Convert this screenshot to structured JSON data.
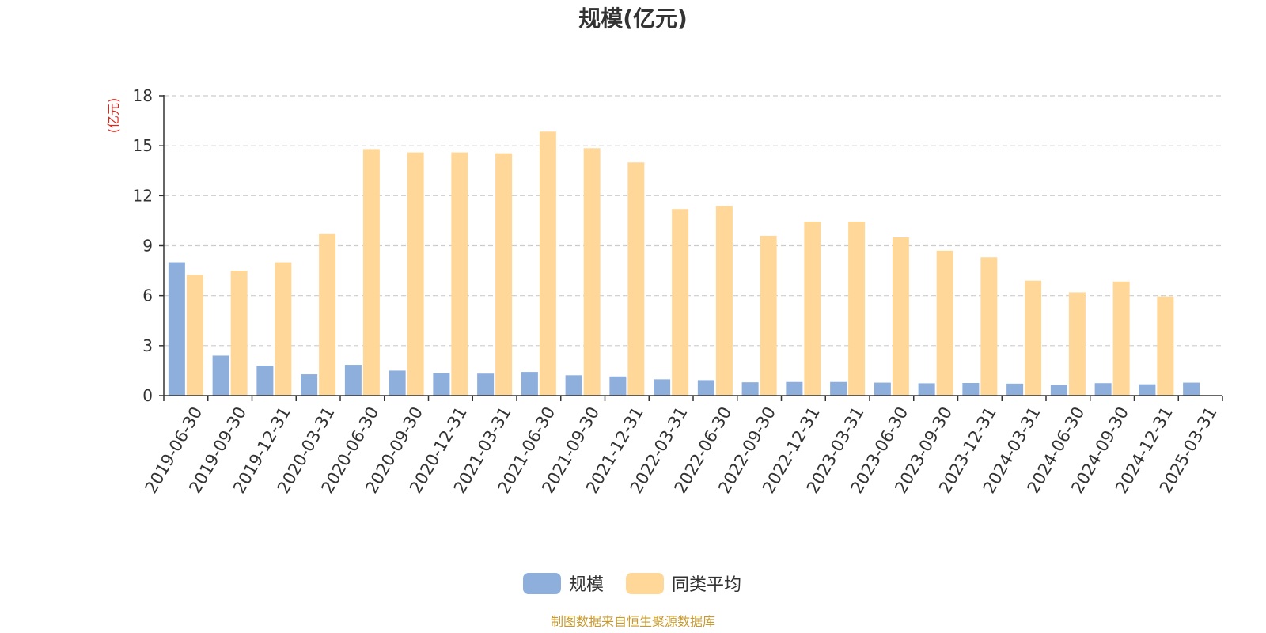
{
  "chart_data": {
    "type": "bar",
    "title": "规模(亿元)",
    "ylabel": "(亿元)",
    "ylim": [
      0,
      18
    ],
    "yticks": [
      0,
      3,
      6,
      9,
      12,
      15,
      18
    ],
    "grid": true,
    "legend_position": "bottom-center",
    "categories": [
      "2019-06-30",
      "2019-09-30",
      "2019-12-31",
      "2020-03-31",
      "2020-06-30",
      "2020-09-30",
      "2020-12-31",
      "2021-03-31",
      "2021-06-30",
      "2021-09-30",
      "2021-12-31",
      "2022-03-31",
      "2022-06-30",
      "2022-09-30",
      "2022-12-31",
      "2023-03-31",
      "2023-06-30",
      "2023-09-30",
      "2023-12-31",
      "2024-03-31",
      "2024-06-30",
      "2024-09-30",
      "2024-12-31",
      "2025-03-31"
    ],
    "series": [
      {
        "name": "规模",
        "color": "#8EAEDC",
        "values": [
          8.0,
          2.4,
          1.8,
          1.28,
          1.85,
          1.5,
          1.35,
          1.32,
          1.42,
          1.22,
          1.15,
          0.98,
          0.93,
          0.8,
          0.82,
          0.82,
          0.78,
          0.74,
          0.76,
          0.72,
          0.64,
          0.75,
          0.68,
          0.78
        ]
      },
      {
        "name": "同类平均",
        "color": "#FFD899",
        "values": [
          7.25,
          7.5,
          8.0,
          9.7,
          14.8,
          14.6,
          14.6,
          14.55,
          15.85,
          14.85,
          14.0,
          11.2,
          11.4,
          9.6,
          10.45,
          10.45,
          9.5,
          8.7,
          8.3,
          6.9,
          6.2,
          6.85,
          5.95,
          null
        ]
      }
    ],
    "colors": {
      "axis": "#333333",
      "grid": "#CCCCCC",
      "unit_label": "#E0261A",
      "source": "#C89A2E"
    }
  },
  "source_note": "制图数据来自恒生聚源数据库"
}
